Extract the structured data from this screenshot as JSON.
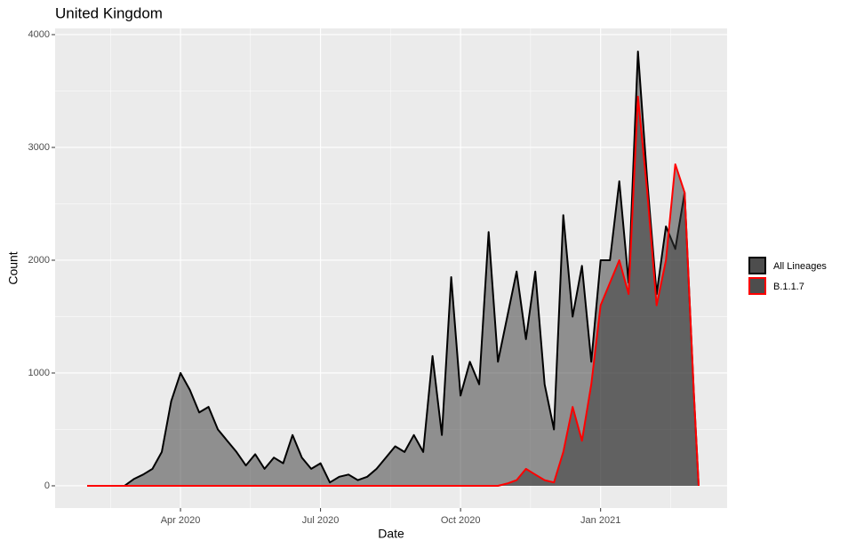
{
  "chart_data": {
    "type": "area",
    "title": "United Kingdom",
    "x_label": "Date",
    "y_label": "Count",
    "x": [
      1.0,
      1.2,
      1.4,
      1.6,
      1.8,
      2.0,
      2.2,
      2.4,
      2.6,
      2.8,
      3.0,
      3.2,
      3.4,
      3.6,
      3.8,
      4.0,
      4.2,
      4.4,
      4.6,
      4.8,
      5.0,
      5.2,
      5.4,
      5.6,
      5.8,
      6.0,
      6.2,
      6.4,
      6.6,
      6.8,
      7.0,
      7.2,
      7.4,
      7.6,
      7.8,
      8.0,
      8.2,
      8.4,
      8.6,
      8.8,
      9.0,
      9.2,
      9.4,
      9.6,
      9.8,
      10.0,
      10.2,
      10.4,
      10.6,
      10.8,
      11.0,
      11.2,
      11.4,
      11.6,
      11.8,
      12.0,
      12.2,
      12.4,
      12.6,
      12.8,
      13.0,
      13.2,
      13.4,
      13.6,
      13.8,
      14.0,
      14.1
    ],
    "series": [
      {
        "name": "All Lineages",
        "color": "#000000",
        "values": [
          0,
          0,
          0,
          0,
          0,
          60,
          100,
          150,
          300,
          750,
          1000,
          850,
          650,
          700,
          500,
          400,
          300,
          180,
          280,
          150,
          250,
          200,
          450,
          250,
          150,
          200,
          30,
          80,
          100,
          50,
          80,
          150,
          250,
          350,
          300,
          450,
          300,
          1150,
          450,
          1850,
          800,
          1100,
          900,
          2250,
          1100,
          1500,
          1900,
          1300,
          1900,
          900,
          500,
          2400,
          1500,
          1950,
          1100,
          2000,
          2000,
          2700,
          1800,
          3850,
          2700,
          1700,
          2300,
          2100,
          2600,
          800,
          0
        ]
      },
      {
        "name": "B.1.1.7",
        "color": "#ff0000",
        "values": [
          0,
          0,
          0,
          0,
          0,
          0,
          0,
          0,
          0,
          0,
          0,
          0,
          0,
          0,
          0,
          0,
          0,
          0,
          0,
          0,
          0,
          0,
          0,
          0,
          0,
          0,
          0,
          0,
          0,
          0,
          0,
          0,
          0,
          0,
          0,
          0,
          0,
          0,
          0,
          0,
          0,
          0,
          0,
          0,
          0,
          20,
          50,
          150,
          100,
          50,
          30,
          300,
          700,
          400,
          900,
          1600,
          1800,
          2000,
          1700,
          3450,
          2600,
          1600,
          2000,
          2850,
          2600,
          800,
          0
        ]
      }
    ],
    "xlim": [
      0.314,
      14.71
    ],
    "ylim": [
      -197,
      4055
    ],
    "xticks": [
      {
        "value": 3,
        "label": "Apr 2020"
      },
      {
        "value": 6,
        "label": "Jul 2020"
      },
      {
        "value": 9,
        "label": "Oct 2020"
      },
      {
        "value": 12,
        "label": "Jan 2021"
      }
    ],
    "yticks": [
      0,
      1000,
      2000,
      3000,
      4000
    ],
    "grid": true,
    "legend": "right"
  }
}
